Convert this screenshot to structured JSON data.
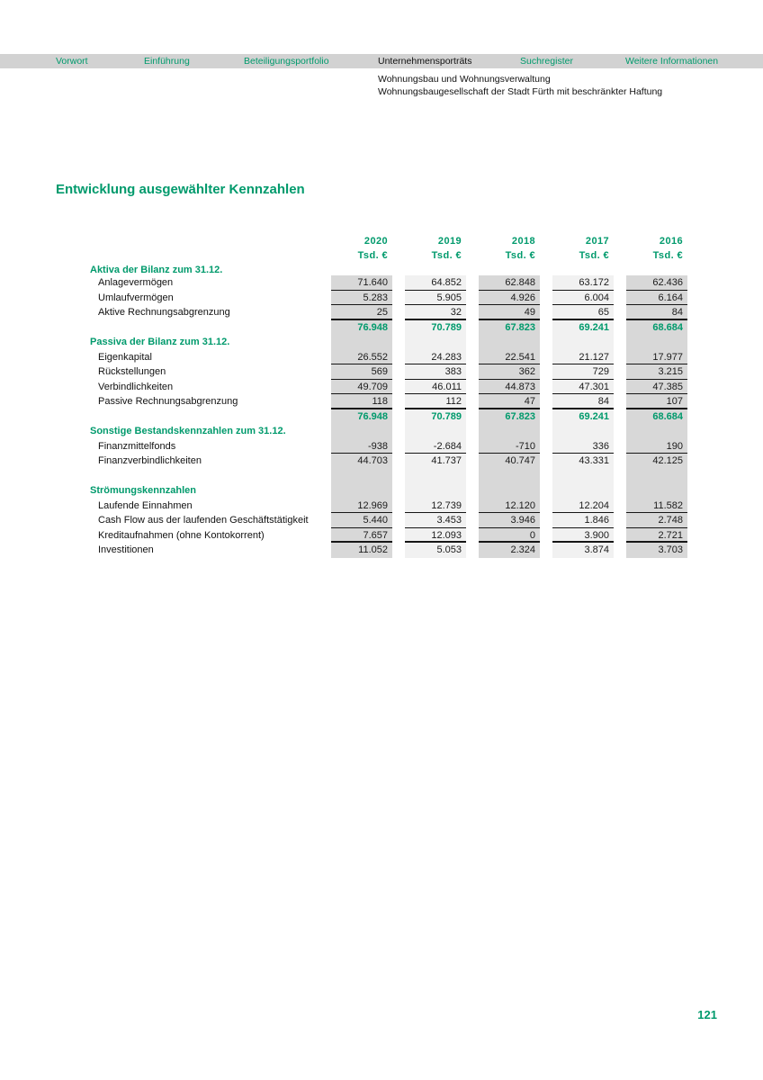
{
  "nav": {
    "items": [
      {
        "label": "Vorwort",
        "active": false
      },
      {
        "label": "Einführung",
        "active": false
      },
      {
        "label": "Beteiligungsportfolio",
        "active": false
      },
      {
        "label": "Unternehmensporträts",
        "active": true
      },
      {
        "label": "Suchregister",
        "active": false
      },
      {
        "label": "Weitere Informationen",
        "active": false
      }
    ]
  },
  "doc_header": {
    "line1": "Wohnungsbau und Wohnungsverwaltung",
    "line2": "Wohnungsbaugesellschaft der Stadt Fürth mit beschränkter Haftung"
  },
  "page_title": "Entwicklung ausgewählter Kennzahlen",
  "page_number": "121",
  "colors": {
    "accent_green": "#009a6c",
    "strip_dark": "#d8d8d8",
    "strip_light": "#f1f1f1",
    "nav_bar_bg": "#d2d2d2"
  },
  "table": {
    "columns": [
      "2020",
      "2019",
      "2018",
      "2017",
      "2016"
    ],
    "unit": "Tsd. €",
    "rows": [
      {
        "type": "section",
        "label": "Aktiva der Bilanz zum 31.12."
      },
      {
        "type": "data",
        "label": "Anlagevermögen",
        "values": [
          "71.640",
          "64.852",
          "62.848",
          "63.172",
          "62.436"
        ],
        "rule": "thin"
      },
      {
        "type": "data",
        "label": "Umlaufvermögen",
        "values": [
          "5.283",
          "5.905",
          "4.926",
          "6.004",
          "6.164"
        ],
        "rule": "thin"
      },
      {
        "type": "data",
        "label": "Aktive Rechnungsabgrenzung",
        "values": [
          "25",
          "32",
          "49",
          "65",
          "84"
        ],
        "rule": "thick"
      },
      {
        "type": "total",
        "label": "",
        "values": [
          "76.948",
          "70.789",
          "67.823",
          "69.241",
          "68.684"
        ]
      },
      {
        "type": "section",
        "label": "Passiva der Bilanz zum 31.12."
      },
      {
        "type": "data",
        "label": "Eigenkapital",
        "values": [
          "26.552",
          "24.283",
          "22.541",
          "21.127",
          "17.977"
        ],
        "rule": "thin"
      },
      {
        "type": "data",
        "label": "Rückstellungen",
        "values": [
          "569",
          "383",
          "362",
          "729",
          "3.215"
        ],
        "rule": "thin"
      },
      {
        "type": "data",
        "label": "Verbindlichkeiten",
        "values": [
          "49.709",
          "46.011",
          "44.873",
          "47.301",
          "47.385"
        ],
        "rule": "thin"
      },
      {
        "type": "data",
        "label": "Passive Rechnungsabgrenzung",
        "values": [
          "118",
          "112",
          "47",
          "84",
          "107"
        ],
        "rule": "thick"
      },
      {
        "type": "total",
        "label": "",
        "values": [
          "76.948",
          "70.789",
          "67.823",
          "69.241",
          "68.684"
        ]
      },
      {
        "type": "section",
        "label": "Sonstige Bestandskennzahlen zum 31.12."
      },
      {
        "type": "data",
        "label": "Finanzmittelfonds",
        "values": [
          "-938",
          "-2.684",
          "-710",
          "336",
          "190"
        ],
        "rule": "thin"
      },
      {
        "type": "data",
        "label": "Finanzverbindlichkeiten",
        "values": [
          "44.703",
          "41.737",
          "40.747",
          "43.331",
          "42.125"
        ]
      },
      {
        "type": "blank",
        "label": ""
      },
      {
        "type": "section",
        "label": "Strömungskennzahlen"
      },
      {
        "type": "data",
        "label": "Laufende Einnahmen",
        "values": [
          "12.969",
          "12.739",
          "12.120",
          "12.204",
          "11.582"
        ],
        "rule": "thin"
      },
      {
        "type": "data",
        "label": "Cash Flow aus der laufenden Geschäftstätigkeit",
        "values": [
          "5.440",
          "3.453",
          "3.946",
          "1.846",
          "2.748"
        ],
        "rule": "thin"
      },
      {
        "type": "data",
        "label": "Kreditaufnahmen (ohne Kontokorrent)",
        "values": [
          "7.657",
          "12.093",
          "0",
          "3.900",
          "2.721"
        ],
        "rule": "thick"
      },
      {
        "type": "data",
        "label": "Investitionen",
        "values": [
          "11.052",
          "5.053",
          "2.324",
          "3.874",
          "3.703"
        ]
      }
    ]
  }
}
